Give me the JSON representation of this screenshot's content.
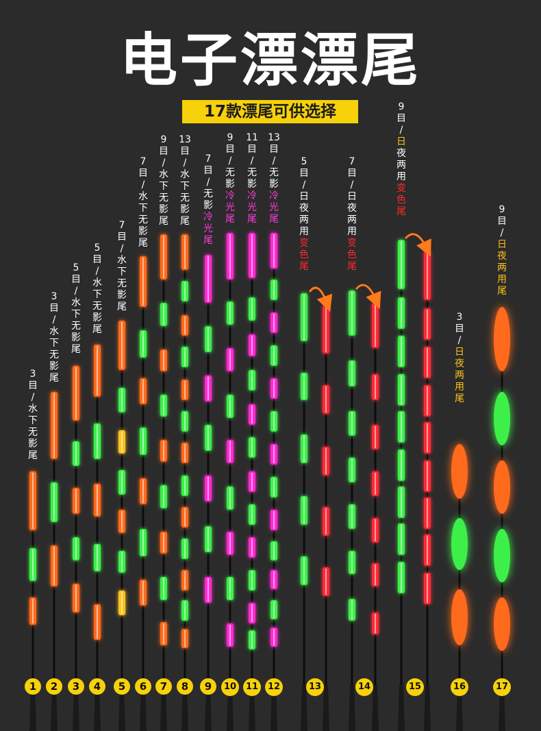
{
  "title": "电子漂漂尾",
  "banner": "17款漂尾可供选择",
  "colors": {
    "background": "#2b2b2b",
    "banner": "#f7d10a",
    "orange": "#ff6a1a",
    "green": "#3cf04a",
    "red": "#ff2a36",
    "pink": "#ff2ad0",
    "label_white": "#ffffff",
    "label_pink": "#ff3cdc",
    "label_red": "#ff2a2a",
    "label_yellow": "#ffc21a"
  },
  "floats": [
    {
      "number": "1",
      "label": [
        {
          "t": "3",
          "c": "w"
        },
        {
          "t": "目",
          "c": "w"
        },
        {
          "t": "/",
          "c": "w"
        },
        {
          "t": "水",
          "c": "w"
        },
        {
          "t": "下",
          "c": "w"
        },
        {
          "t": "无",
          "c": "w"
        },
        {
          "t": "影",
          "c": "w"
        },
        {
          "t": "尾",
          "c": "w"
        }
      ]
    },
    {
      "number": "2",
      "label": [
        {
          "t": "3",
          "c": "w"
        },
        {
          "t": "目",
          "c": "w"
        },
        {
          "t": "/",
          "c": "w"
        },
        {
          "t": "水",
          "c": "w"
        },
        {
          "t": "下",
          "c": "w"
        },
        {
          "t": "无",
          "c": "w"
        },
        {
          "t": "影",
          "c": "w"
        },
        {
          "t": "尾",
          "c": "w"
        }
      ]
    },
    {
      "number": "3",
      "label": [
        {
          "t": "5",
          "c": "w"
        },
        {
          "t": "目",
          "c": "w"
        },
        {
          "t": "/",
          "c": "w"
        },
        {
          "t": "水",
          "c": "w"
        },
        {
          "t": "下",
          "c": "w"
        },
        {
          "t": "无",
          "c": "w"
        },
        {
          "t": "影",
          "c": "w"
        },
        {
          "t": "尾",
          "c": "w"
        }
      ]
    },
    {
      "number": "4",
      "label": [
        {
          "t": "5",
          "c": "w"
        },
        {
          "t": "目",
          "c": "w"
        },
        {
          "t": "/",
          "c": "w"
        },
        {
          "t": "水",
          "c": "w"
        },
        {
          "t": "下",
          "c": "w"
        },
        {
          "t": "无",
          "c": "w"
        },
        {
          "t": "影",
          "c": "w"
        },
        {
          "t": "尾",
          "c": "w"
        }
      ]
    },
    {
      "number": "5",
      "label": [
        {
          "t": "7",
          "c": "w"
        },
        {
          "t": "目",
          "c": "w"
        },
        {
          "t": "/",
          "c": "w"
        },
        {
          "t": "水",
          "c": "w"
        },
        {
          "t": "下",
          "c": "w"
        },
        {
          "t": "无",
          "c": "w"
        },
        {
          "t": "影",
          "c": "w"
        },
        {
          "t": "尾",
          "c": "w"
        }
      ]
    },
    {
      "number": "6",
      "label": [
        {
          "t": "7",
          "c": "w"
        },
        {
          "t": "目",
          "c": "w"
        },
        {
          "t": "/",
          "c": "w"
        },
        {
          "t": "水",
          "c": "w"
        },
        {
          "t": "下",
          "c": "w"
        },
        {
          "t": "无",
          "c": "w"
        },
        {
          "t": "影",
          "c": "w"
        },
        {
          "t": "尾",
          "c": "w"
        }
      ]
    },
    {
      "number": "7",
      "label": [
        {
          "t": "9",
          "c": "w"
        },
        {
          "t": "目",
          "c": "w"
        },
        {
          "t": "/",
          "c": "w"
        },
        {
          "t": "水",
          "c": "w"
        },
        {
          "t": "下",
          "c": "w"
        },
        {
          "t": "无",
          "c": "w"
        },
        {
          "t": "影",
          "c": "w"
        },
        {
          "t": "尾",
          "c": "w"
        }
      ]
    },
    {
      "number": "8",
      "label": [
        {
          "t": "13",
          "c": "w"
        },
        {
          "t": "目",
          "c": "w"
        },
        {
          "t": "/",
          "c": "w"
        },
        {
          "t": "水",
          "c": "w"
        },
        {
          "t": "下",
          "c": "w"
        },
        {
          "t": "无",
          "c": "w"
        },
        {
          "t": "影",
          "c": "w"
        },
        {
          "t": "尾",
          "c": "w"
        }
      ]
    },
    {
      "number": "9",
      "label": [
        {
          "t": "7",
          "c": "w"
        },
        {
          "t": "目",
          "c": "w"
        },
        {
          "t": "/",
          "c": "w"
        },
        {
          "t": "无",
          "c": "w"
        },
        {
          "t": "影",
          "c": "w"
        },
        {
          "t": "冷",
          "c": "p"
        },
        {
          "t": "光",
          "c": "p"
        },
        {
          "t": "尾",
          "c": "p"
        }
      ]
    },
    {
      "number": "10",
      "label": [
        {
          "t": "9",
          "c": "w"
        },
        {
          "t": "目",
          "c": "w"
        },
        {
          "t": "/",
          "c": "w"
        },
        {
          "t": "无",
          "c": "w"
        },
        {
          "t": "影",
          "c": "w"
        },
        {
          "t": "冷",
          "c": "p"
        },
        {
          "t": "光",
          "c": "p"
        },
        {
          "t": "尾",
          "c": "p"
        }
      ]
    },
    {
      "number": "11",
      "label": [
        {
          "t": "11",
          "c": "w"
        },
        {
          "t": "目",
          "c": "w"
        },
        {
          "t": "/",
          "c": "w"
        },
        {
          "t": "无",
          "c": "w"
        },
        {
          "t": "影",
          "c": "w"
        },
        {
          "t": "冷",
          "c": "p"
        },
        {
          "t": "光",
          "c": "p"
        },
        {
          "t": "尾",
          "c": "p"
        }
      ]
    },
    {
      "number": "12",
      "label": [
        {
          "t": "13",
          "c": "w"
        },
        {
          "t": "目",
          "c": "w"
        },
        {
          "t": "/",
          "c": "w"
        },
        {
          "t": "无",
          "c": "w"
        },
        {
          "t": "影",
          "c": "w"
        },
        {
          "t": "冷",
          "c": "p"
        },
        {
          "t": "光",
          "c": "p"
        },
        {
          "t": "尾",
          "c": "p"
        }
      ]
    },
    {
      "number": "13",
      "label": [
        {
          "t": "5",
          "c": "w"
        },
        {
          "t": "目",
          "c": "w"
        },
        {
          "t": "/",
          "c": "w"
        },
        {
          "t": "日",
          "c": "w"
        },
        {
          "t": "夜",
          "c": "w"
        },
        {
          "t": "两",
          "c": "w"
        },
        {
          "t": "用",
          "c": "w"
        },
        {
          "t": "变",
          "c": "r"
        },
        {
          "t": "色",
          "c": "r"
        },
        {
          "t": "尾",
          "c": "r"
        }
      ]
    },
    {
      "number": "14",
      "label": [
        {
          "t": "7",
          "c": "w"
        },
        {
          "t": "目",
          "c": "w"
        },
        {
          "t": "/",
          "c": "w"
        },
        {
          "t": "日",
          "c": "w"
        },
        {
          "t": "夜",
          "c": "w"
        },
        {
          "t": "两",
          "c": "w"
        },
        {
          "t": "用",
          "c": "w"
        },
        {
          "t": "变",
          "c": "r"
        },
        {
          "t": "色",
          "c": "r"
        },
        {
          "t": "尾",
          "c": "r"
        }
      ]
    },
    {
      "number": "15",
      "label": [
        {
          "t": "9",
          "c": "w"
        },
        {
          "t": "目",
          "c": "w"
        },
        {
          "t": "/",
          "c": "w"
        },
        {
          "t": "日",
          "c": "y"
        },
        {
          "t": "夜",
          "c": "w"
        },
        {
          "t": "两",
          "c": "w"
        },
        {
          "t": "用",
          "c": "w"
        },
        {
          "t": "变",
          "c": "r"
        },
        {
          "t": "色",
          "c": "r"
        },
        {
          "t": "尾",
          "c": "r"
        }
      ]
    },
    {
      "number": "16",
      "label": [
        {
          "t": "3",
          "c": "w"
        },
        {
          "t": "目",
          "c": "w"
        },
        {
          "t": "/",
          "c": "w"
        },
        {
          "t": "日",
          "c": "y"
        },
        {
          "t": "夜",
          "c": "y"
        },
        {
          "t": "两",
          "c": "y"
        },
        {
          "t": "用",
          "c": "y"
        },
        {
          "t": "尾",
          "c": "y"
        }
      ]
    },
    {
      "number": "17",
      "label": [
        {
          "t": "9",
          "c": "w"
        },
        {
          "t": "目",
          "c": "w"
        },
        {
          "t": "/",
          "c": "w"
        },
        {
          "t": "日",
          "c": "y"
        },
        {
          "t": "夜",
          "c": "y"
        },
        {
          "t": "两",
          "c": "y"
        },
        {
          "t": "用",
          "c": "y"
        },
        {
          "t": "尾",
          "c": "y"
        }
      ]
    }
  ]
}
